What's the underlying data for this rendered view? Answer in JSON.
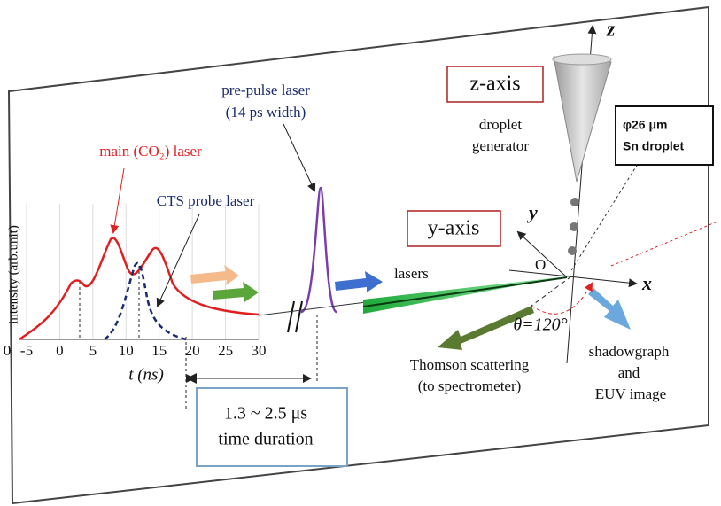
{
  "labels": {
    "pre_pulse": [
      "pre-pulse laser",
      "(14 ps width)"
    ],
    "main_laser": "main (CO₂) laser",
    "cts_probe": "CTS probe laser",
    "lasers": "lasers",
    "time_range": "1.3 ~ 2.5 μs",
    "time_duration": "time duration",
    "thomson": [
      "Thomson scattering",
      "(to spectrometer)"
    ],
    "theta": "θ=120°",
    "shadowgraph": [
      "shadowgraph",
      "and",
      "EUV image"
    ],
    "z_axis_box": "z-axis",
    "y_axis_box": "y-axis",
    "droplet_generator": [
      "droplet",
      "generator"
    ],
    "sn_droplet": [
      "φ26 μm",
      "Sn droplet"
    ],
    "axis_z": "z",
    "axis_y": "y",
    "axis_x": "x",
    "origin": "O"
  },
  "plot": {
    "ylabel": "intensity (arb.unit)",
    "xlabel": "t (ns)",
    "xlim": [
      -5,
      30
    ],
    "xticks": [
      -5,
      0,
      5,
      10,
      15,
      20,
      25,
      30
    ],
    "yticks": [
      0
    ]
  }
}
